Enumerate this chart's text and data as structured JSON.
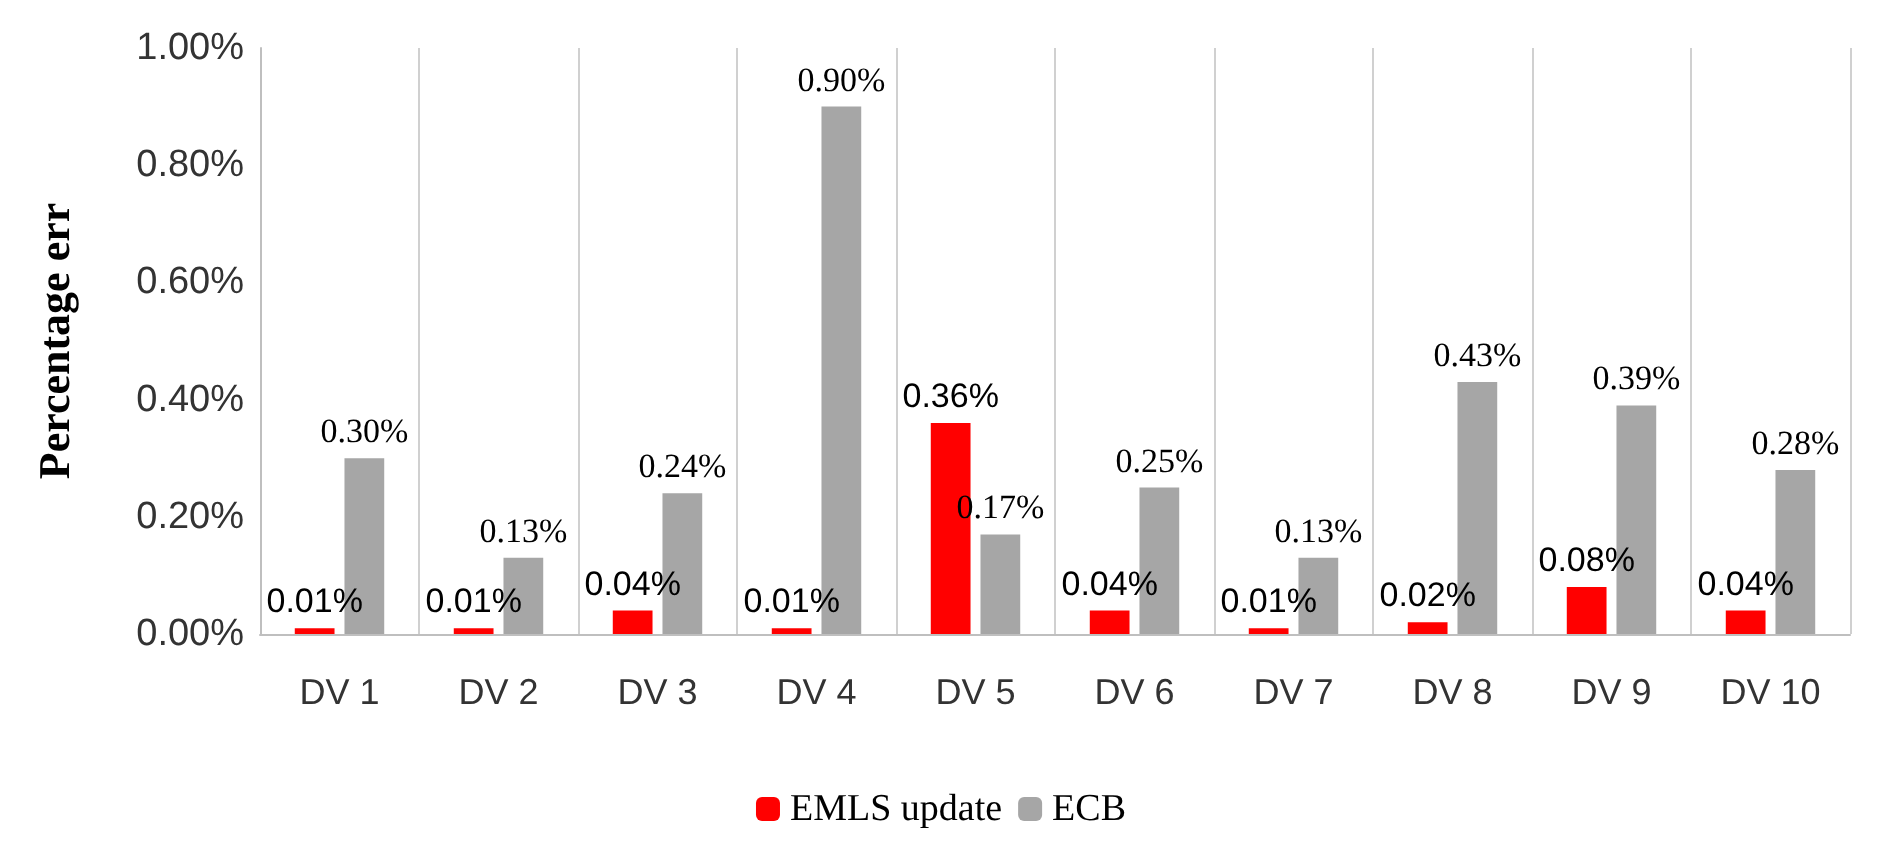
{
  "chart_data": {
    "type": "bar",
    "ylabel": "Percentage err",
    "categories": [
      "DV 1",
      "DV 2",
      "DV 3",
      "DV 4",
      "DV 5",
      "DV 6",
      "DV 7",
      "DV 8",
      "DV 9",
      "DV 10"
    ],
    "series": [
      {
        "name": "EMLS update",
        "color": "#ff0000",
        "values": [
          0.01,
          0.01,
          0.04,
          0.01,
          0.36,
          0.04,
          0.01,
          0.02,
          0.08,
          0.04
        ],
        "value_labels": [
          "0.01%",
          "0.01%",
          "0.04%",
          "0.01%",
          "0.36%",
          "0.04%",
          "0.01%",
          "0.02%",
          "0.08%",
          "0.04%"
        ]
      },
      {
        "name": "ECB",
        "color": "#a6a6a6",
        "values": [
          0.3,
          0.13,
          0.24,
          0.9,
          0.17,
          0.25,
          0.13,
          0.43,
          0.39,
          0.28
        ],
        "value_labels": [
          "0.30%",
          "0.13%",
          "0.24%",
          "0.90%",
          "0.17%",
          "0.25%",
          "0.13%",
          "0.43%",
          "0.39%",
          "0.28%"
        ]
      }
    ],
    "ylim": [
      0,
      1
    ],
    "yticks": [
      {
        "value": 0,
        "label": "0.00%"
      },
      {
        "value": 0.2,
        "label": "0.20%"
      },
      {
        "value": 0.4,
        "label": "0.40%"
      },
      {
        "value": 0.6,
        "label": "0.60%"
      },
      {
        "value": 0.8,
        "label": "0.80%"
      },
      {
        "value": 1,
        "label": "1.00%"
      }
    ],
    "grid": "x",
    "legend": "bottom"
  }
}
